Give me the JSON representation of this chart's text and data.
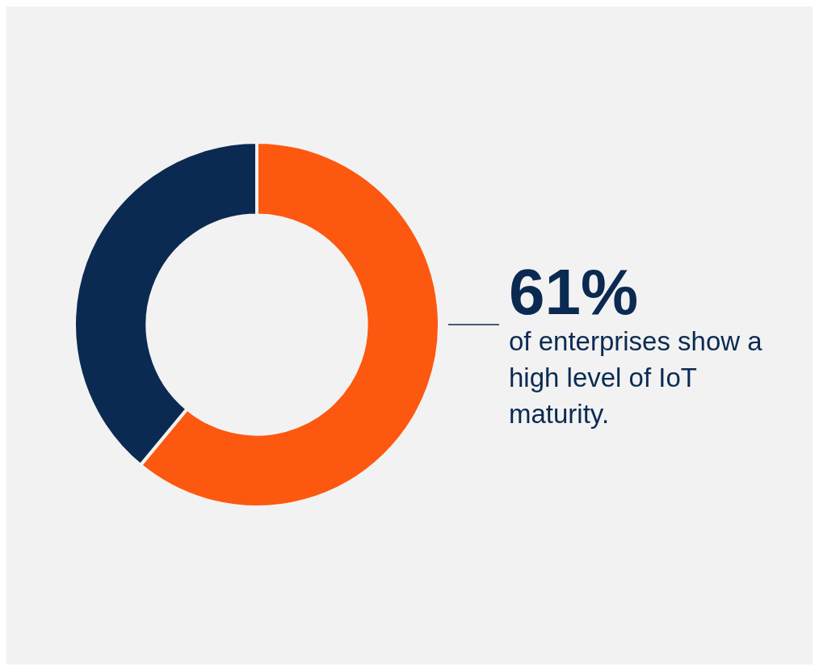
{
  "chart_data": {
    "type": "donut",
    "categories": [
      null,
      null
    ],
    "values": [
      61,
      39
    ],
    "colors": [
      "#fd5810",
      "#0b2a52"
    ],
    "value_labels": [
      "61%",
      null
    ],
    "annotations": [
      "of enterprises show a high level of IoT maturity."
    ],
    "legend": false
  }
}
